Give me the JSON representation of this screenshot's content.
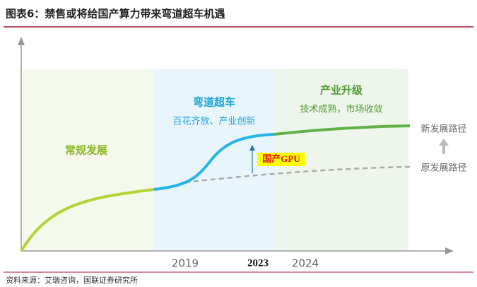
{
  "header": {
    "title": "图表6：禁售或将给国产算力带来弯道超车机遇"
  },
  "phases": [
    {
      "label": "常规发展"
    },
    {
      "label": "弯道超车",
      "sublabel": "百花齐放、产业创新"
    },
    {
      "label": "产业升级",
      "sublabel": "技术成熟，市场收敛"
    }
  ],
  "years": [
    "2019",
    "2023",
    "2024"
  ],
  "paths": {
    "new": "新发展路径",
    "old": "原发展路径"
  },
  "annotation": "国产GPU",
  "source": "资料来源：艾瑞咨询，国联证券研究所"
}
